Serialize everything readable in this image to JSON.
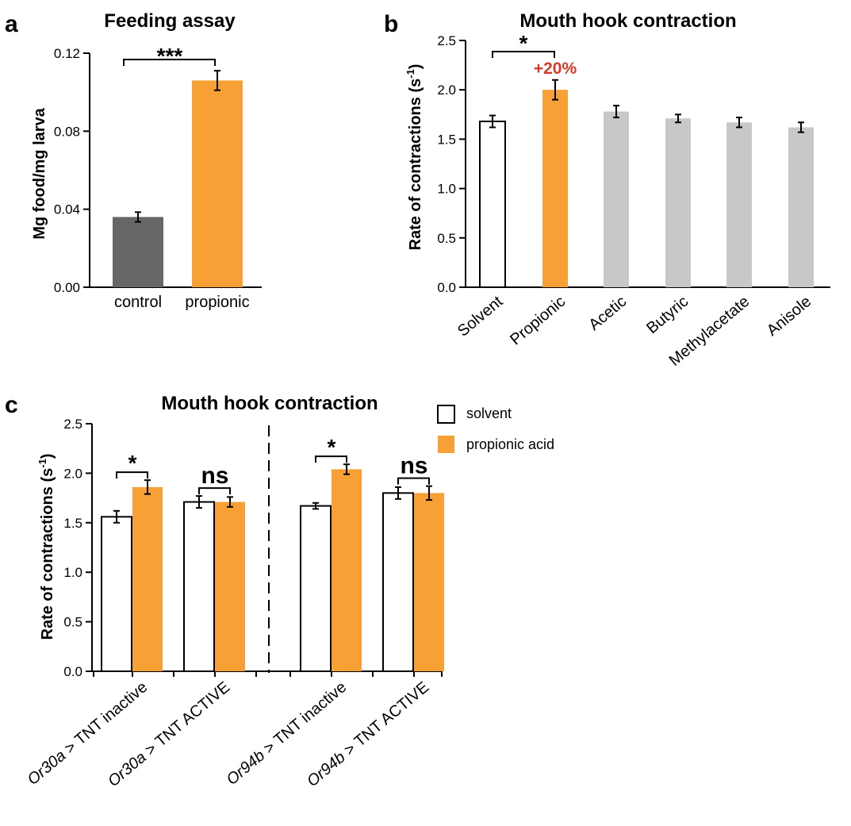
{
  "colors": {
    "control": "#666666",
    "propionic": "#f7a035",
    "other": "#c8c8c8",
    "solvent": "#ffffff",
    "highlight": "#d93a26"
  },
  "panel_a": {
    "letter": "a"
  },
  "panel_b": {
    "letter": "b",
    "annotation": "+20%"
  },
  "panel_c": {
    "letter": "c"
  },
  "legend": {
    "solvent": "solvent",
    "propionic": "propionic acid"
  },
  "chart_data": [
    {
      "type": "bar",
      "title": "Feeding assay",
      "ylabel": "Mg food/mg larva",
      "ylim": [
        0,
        0.12
      ],
      "yticks": [
        "0.00",
        "0.04",
        "0.08",
        "0.12"
      ],
      "categories": [
        "control",
        "propionic"
      ],
      "values": [
        0.036,
        0.106
      ],
      "errors": [
        0.0025,
        0.005
      ],
      "significance": [
        {
          "between": [
            "control",
            "propionic"
          ],
          "label": "***"
        }
      ]
    },
    {
      "type": "bar",
      "title": "Mouth hook contraction",
      "ylabel": "Rate of contractions (s-1)",
      "ylim": [
        0,
        2.5
      ],
      "yticks": [
        "0.0",
        "0.5",
        "1.0",
        "1.5",
        "2.0",
        "2.5"
      ],
      "categories": [
        "Solvent",
        "Propionic",
        "Acetic",
        "Butyric",
        "Methylacetate",
        "Anisole"
      ],
      "values": [
        1.68,
        2.0,
        1.78,
        1.71,
        1.67,
        1.62
      ],
      "errors": [
        0.06,
        0.1,
        0.06,
        0.04,
        0.05,
        0.05
      ],
      "significance": [
        {
          "between": [
            "Solvent",
            "Propionic"
          ],
          "label": "*"
        }
      ]
    },
    {
      "type": "bar",
      "title": "Mouth hook contraction",
      "ylabel": "Rate of contractions (s-1)",
      "ylim": [
        0,
        2.5
      ],
      "yticks": [
        "0.0",
        "0.5",
        "1.0",
        "1.5",
        "2.0",
        "2.5"
      ],
      "categories": [
        {
          "gene": "Or30a",
          "rest": " > TNT inactive"
        },
        {
          "gene": "Or30a",
          "rest": " > TNT ACTIVE"
        },
        {
          "gene": "Or94b",
          "rest": " > TNT inactive"
        },
        {
          "gene": "Or94b",
          "rest": " > TNT ACTIVE"
        }
      ],
      "series": [
        {
          "name": "solvent",
          "values": [
            1.56,
            1.71,
            1.67,
            1.8
          ],
          "errors": [
            0.06,
            0.06,
            0.03,
            0.06
          ]
        },
        {
          "name": "propionic acid",
          "values": [
            1.86,
            1.71,
            2.04,
            1.8
          ],
          "errors": [
            0.07,
            0.05,
            0.05,
            0.07
          ]
        }
      ],
      "significance": [
        "*",
        "ns",
        "*",
        "ns"
      ]
    }
  ]
}
